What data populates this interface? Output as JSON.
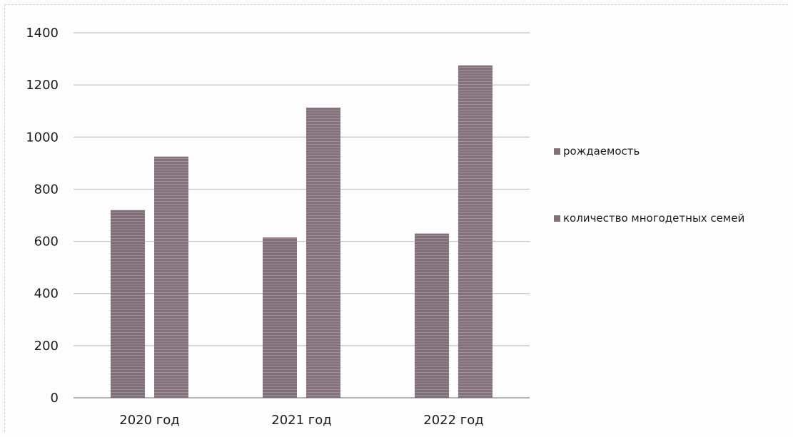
{
  "chart_data": {
    "type": "bar",
    "title": "",
    "xlabel": "",
    "ylabel": "",
    "categories": [
      "2020 год",
      "2021 год",
      "2022 год"
    ],
    "series": [
      {
        "name": "рождаемость",
        "values": [
          720,
          615,
          630
        ],
        "color": "#807078"
      },
      {
        "name": "количество многодетных семей",
        "values": [
          925,
          1113,
          1275
        ],
        "color": "#857079"
      }
    ],
    "ylim": [
      0,
      1400
    ],
    "yticks": [
      0,
      200,
      400,
      600,
      800,
      1000,
      1200,
      1400
    ],
    "grid": true,
    "legend_position": "right"
  }
}
